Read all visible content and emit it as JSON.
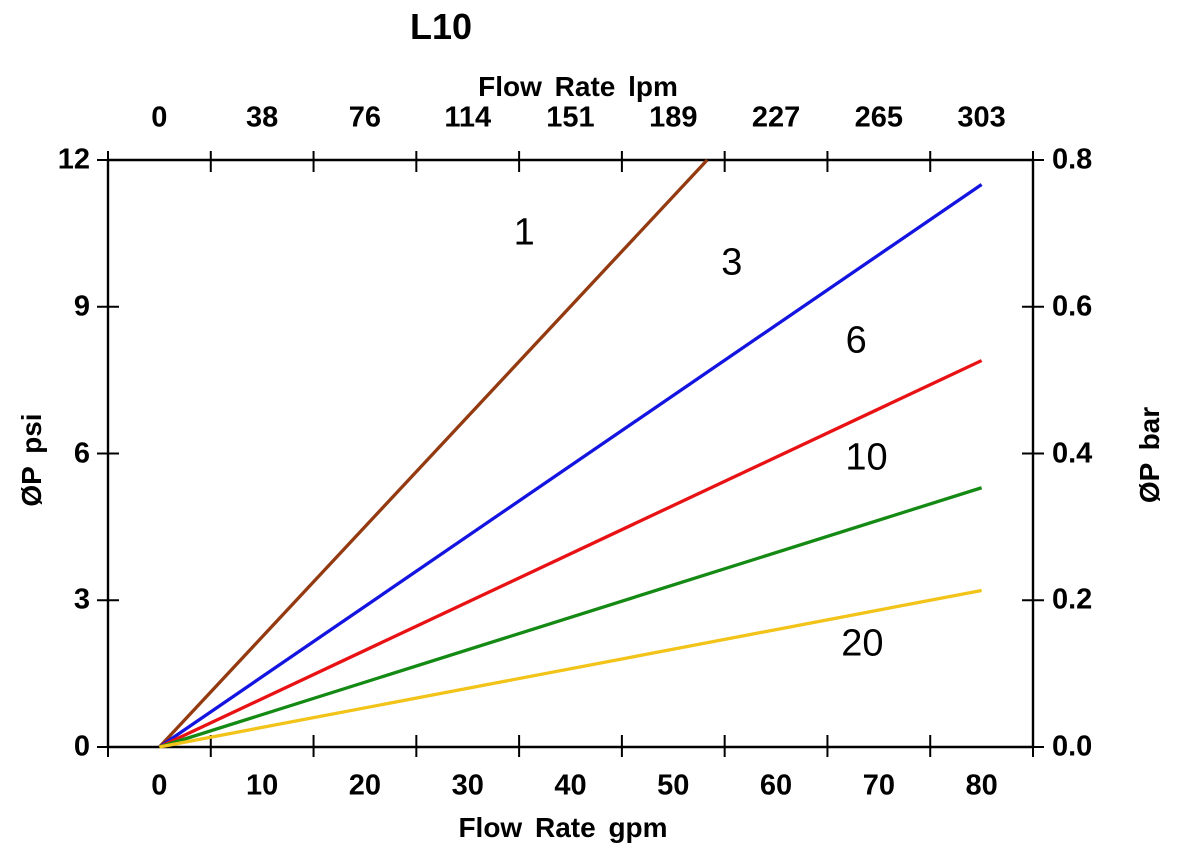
{
  "page": {
    "background_color": "#ffffff",
    "text_color": "#000000"
  },
  "chart_data": {
    "type": "line",
    "title": "L10",
    "axes": {
      "top": {
        "label": "Flow Rate lpm",
        "tick_labels": [
          "0",
          "38",
          "76",
          "114",
          "151",
          "189",
          "227",
          "265",
          "303"
        ]
      },
      "bottom": {
        "label": "Flow Rate gpm",
        "tick_labels": [
          "0",
          "10",
          "20",
          "30",
          "40",
          "50",
          "60",
          "70",
          "80"
        ]
      },
      "left": {
        "label": "ØP psi",
        "tick_labels": [
          "0",
          "3",
          "6",
          "9",
          "12"
        ],
        "range": [
          0,
          12
        ]
      },
      "right": {
        "label": "ØP bar",
        "tick_labels": [
          "0.0",
          "0.2",
          "0.4",
          "0.6",
          "0.8"
        ],
        "range": [
          0,
          0.8
        ]
      }
    },
    "layout_hints": {
      "grid": false,
      "legend": "none",
      "x_intervals": 9,
      "gpm_per_interval": 10,
      "x_labels_centered_between_ticks": true,
      "tick_style": "cross"
    },
    "series": [
      {
        "name": "1",
        "color": "#933A10",
        "x": [
          0,
          53.3
        ],
        "y": [
          0,
          12.0
        ],
        "label_at": {
          "gpm": 35.5,
          "psi": 10.5
        }
      },
      {
        "name": "3",
        "color": "#1414E0",
        "x": [
          0,
          80
        ],
        "y": [
          0,
          11.5
        ],
        "label_at": {
          "gpm": 55.7,
          "psi": 9.9
        }
      },
      {
        "name": "6",
        "color": "#E81214",
        "x": [
          0,
          80
        ],
        "y": [
          0,
          7.9
        ],
        "label_at": {
          "gpm": 67.8,
          "psi": 8.3
        }
      },
      {
        "name": "10",
        "color": "#148A14",
        "x": [
          0,
          80
        ],
        "y": [
          0,
          5.3
        ],
        "label_at": {
          "gpm": 68.8,
          "psi": 5.9
        }
      },
      {
        "name": "20",
        "color": "#F2C319",
        "x": [
          0,
          80
        ],
        "y": [
          0,
          3.2
        ],
        "label_at": {
          "gpm": 68.4,
          "psi": 2.1
        }
      }
    ]
  }
}
